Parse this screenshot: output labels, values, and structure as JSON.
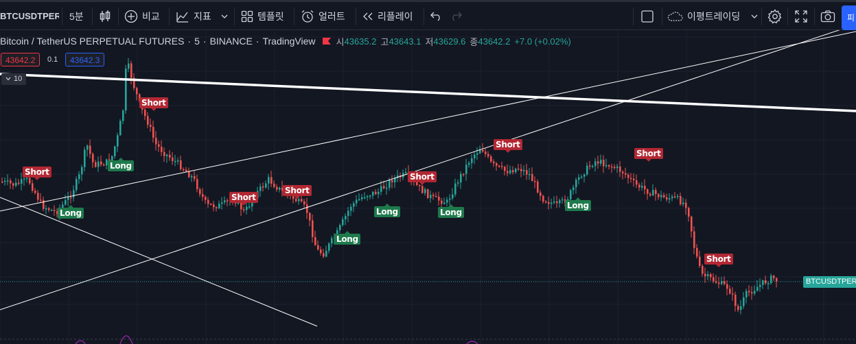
{
  "toolbar": {
    "symbol": "BTCUSDTPERP",
    "interval": "5분",
    "compare_label": "비교",
    "indicators_label": "지표",
    "templates_label": "템플릿",
    "alert_label": "얼러트",
    "replay_label": "리플레이",
    "layout_label": "이평트레이딩",
    "publish_label": "피"
  },
  "legend": {
    "title": "Bitcoin / TetherUS PERPETUAL FUTURES",
    "interval": "5",
    "exchange": "BINANCE",
    "source": "TradingView",
    "open_label": "시",
    "open": "43635.2",
    "high_label": "고",
    "high": "43643.1",
    "low_label": "저",
    "low": "43629.6",
    "close_label": "종",
    "close": "43642.2",
    "change": "+7.0 (+0.02%)"
  },
  "order": {
    "bid": "43642.2",
    "spread": "0.1",
    "ask": "43642.3"
  },
  "collapse_count": "10",
  "price_tag": "BTCUSDTPERP",
  "markers": [
    {
      "type": "short",
      "label": "Short"
    },
    {
      "type": "long",
      "label": "Long"
    },
    {
      "type": "long",
      "label": "Long"
    },
    {
      "type": "short",
      "label": "Short"
    },
    {
      "type": "short",
      "label": "Short"
    },
    {
      "type": "short",
      "label": "Short"
    },
    {
      "type": "long",
      "label": "Long"
    },
    {
      "type": "long",
      "label": "Long"
    },
    {
      "type": "short",
      "label": "Short"
    },
    {
      "type": "long",
      "label": "Long"
    },
    {
      "type": "short",
      "label": "Short"
    },
    {
      "type": "long",
      "label": "Long"
    },
    {
      "type": "short",
      "label": "Short"
    },
    {
      "type": "short",
      "label": "Short"
    }
  ],
  "colors": {
    "background": "#131722",
    "up": "#26a69a",
    "down": "#ef5350",
    "short_marker": "#b22833",
    "long_marker": "#1e7a4c",
    "accent": "#2962ff"
  }
}
